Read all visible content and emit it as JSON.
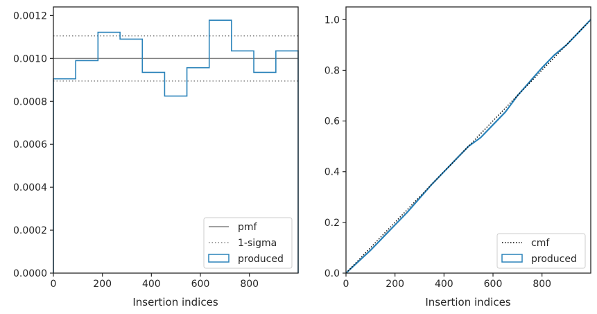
{
  "chart_data": [
    {
      "type": "histogram-step",
      "xlabel": "Insertion indices",
      "xlim": [
        0,
        999
      ],
      "ylim": [
        0,
        0.00124
      ],
      "xticks": [
        0,
        200,
        400,
        600,
        800
      ],
      "yticks": [
        0,
        0.0002,
        0.0004,
        0.0006,
        0.0008,
        0.001,
        0.0012
      ],
      "ytick_labels": [
        "0.0000",
        "0.0002",
        "0.0004",
        "0.0006",
        "0.0008",
        "0.0010",
        "0.0012"
      ],
      "xtick_labels": [
        "0",
        "200",
        "400",
        "600",
        "800"
      ],
      "bin_edges": [
        0,
        91,
        182,
        272,
        363,
        454,
        545,
        636,
        727,
        818,
        908,
        999
      ],
      "produced": [
        0.000905,
        0.00099,
        0.001122,
        0.00109,
        0.000935,
        0.000825,
        0.000957,
        0.001178,
        0.001035,
        0.000935,
        0.001035
      ],
      "pmf": 0.001,
      "sigma_upper": 0.001105,
      "sigma_lower": 0.000895,
      "legend": [
        "pmf",
        "1-sigma",
        "produced"
      ],
      "legend_position": "lower-right",
      "colors": {
        "produced": "#2b83ba",
        "pmf": "#808080",
        "sigma": "#808080"
      }
    },
    {
      "type": "line",
      "xlabel": "Insertion indices",
      "xlim": [
        0,
        999
      ],
      "ylim": [
        0,
        1.05
      ],
      "xticks": [
        0,
        200,
        400,
        600,
        800
      ],
      "yticks": [
        0,
        0.2,
        0.4,
        0.6,
        0.8,
        1.0
      ],
      "ytick_labels": [
        "0.0",
        "0.2",
        "0.4",
        "0.6",
        "0.8",
        "1.0"
      ],
      "xtick_labels": [
        "0",
        "200",
        "400",
        "600",
        "800"
      ],
      "cmf": {
        "x": [
          0,
          999
        ],
        "y": [
          0,
          1.0
        ]
      },
      "produced": {
        "x": [
          0,
          50,
          100,
          150,
          200,
          250,
          300,
          350,
          400,
          450,
          500,
          550,
          600,
          650,
          700,
          750,
          800,
          850,
          900,
          950,
          999
        ],
        "y": [
          0,
          0.045,
          0.09,
          0.14,
          0.19,
          0.24,
          0.295,
          0.35,
          0.4,
          0.45,
          0.5,
          0.535,
          0.585,
          0.635,
          0.7,
          0.755,
          0.81,
          0.86,
          0.9,
          0.95,
          1.0
        ]
      },
      "legend": [
        "cmf",
        "produced"
      ],
      "legend_position": "lower-right",
      "colors": {
        "produced": "#2b83ba",
        "cmf": "#000000"
      }
    }
  ]
}
